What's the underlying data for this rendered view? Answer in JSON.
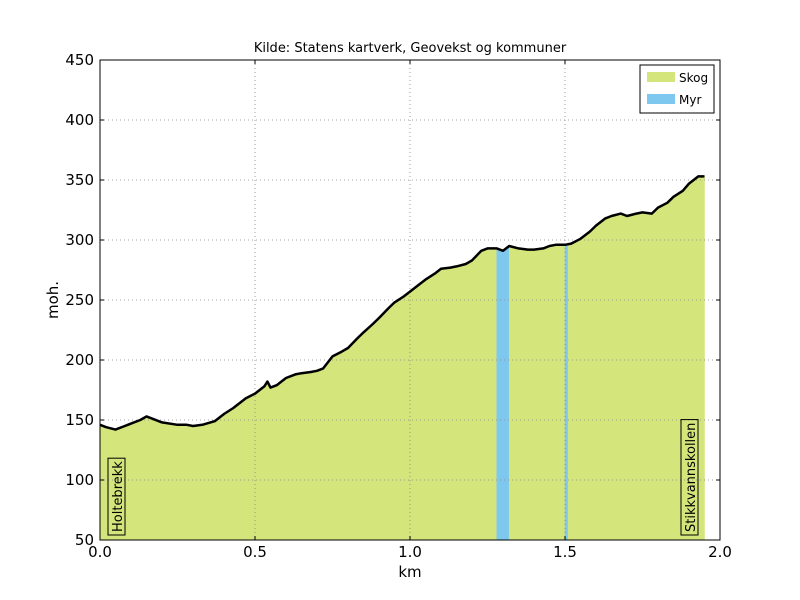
{
  "chart_data": {
    "type": "area",
    "title": "Kilde: Statens kartverk, Geovekst og kommuner",
    "xlabel": "km",
    "ylabel": "moh.",
    "xlim": [
      0.0,
      2.0
    ],
    "ylim": [
      50,
      450
    ],
    "x_ticks": [
      "0.0",
      "0.5",
      "1.0",
      "1.5",
      "2.0"
    ],
    "y_ticks": [
      "50",
      "100",
      "150",
      "200",
      "250",
      "300",
      "350",
      "400",
      "450"
    ],
    "grid": true,
    "legend_position": "top-right",
    "legend": [
      {
        "label": "Skog",
        "color": "#d3e57b"
      },
      {
        "label": "Myr",
        "color": "#7ec8f0"
      }
    ],
    "profile": {
      "x": [
        0.0,
        0.02,
        0.05,
        0.08,
        0.1,
        0.13,
        0.15,
        0.17,
        0.2,
        0.25,
        0.28,
        0.3,
        0.33,
        0.37,
        0.4,
        0.43,
        0.47,
        0.5,
        0.53,
        0.54,
        0.55,
        0.57,
        0.6,
        0.63,
        0.65,
        0.68,
        0.7,
        0.72,
        0.75,
        0.78,
        0.8,
        0.83,
        0.85,
        0.88,
        0.9,
        0.93,
        0.95,
        0.98,
        1.0,
        1.03,
        1.05,
        1.08,
        1.1,
        1.13,
        1.15,
        1.18,
        1.2,
        1.23,
        1.25,
        1.28,
        1.3,
        1.32,
        1.35,
        1.38,
        1.4,
        1.43,
        1.45,
        1.47,
        1.5,
        1.52,
        1.55,
        1.58,
        1.6,
        1.63,
        1.65,
        1.68,
        1.7,
        1.73,
        1.75,
        1.78,
        1.8,
        1.83,
        1.85,
        1.88,
        1.9,
        1.93,
        1.95
      ],
      "y": [
        146,
        144,
        142,
        145,
        147,
        150,
        153,
        151,
        148,
        146,
        146,
        145,
        146,
        149,
        155,
        160,
        168,
        172,
        178,
        182,
        177,
        179,
        185,
        188,
        189,
        190,
        191,
        193,
        203,
        207,
        210,
        218,
        223,
        230,
        235,
        243,
        248,
        253,
        257,
        263,
        267,
        272,
        276,
        277,
        278,
        280,
        283,
        291,
        293,
        293,
        291,
        295,
        293,
        292,
        292,
        293,
        295,
        296,
        296,
        297,
        301,
        307,
        312,
        318,
        320,
        322,
        320,
        322,
        323,
        322,
        327,
        331,
        336,
        341,
        347,
        353,
        353
      ]
    },
    "areas": [
      {
        "series": "Skog",
        "x_from": 0.0,
        "x_to": 1.28
      },
      {
        "series": "Myr",
        "x_from": 1.28,
        "x_to": 1.32
      },
      {
        "series": "Skog",
        "x_from": 1.32,
        "x_to": 1.5
      },
      {
        "series": "Myr",
        "x_from": 1.5,
        "x_to": 1.51
      },
      {
        "series": "Skog",
        "x_from": 1.51,
        "x_to": 1.95
      }
    ],
    "annotations": [
      {
        "text": "Holtebrekk",
        "x": 0.0
      },
      {
        "text": "Stikkvannskollen",
        "x": 1.95
      }
    ]
  }
}
